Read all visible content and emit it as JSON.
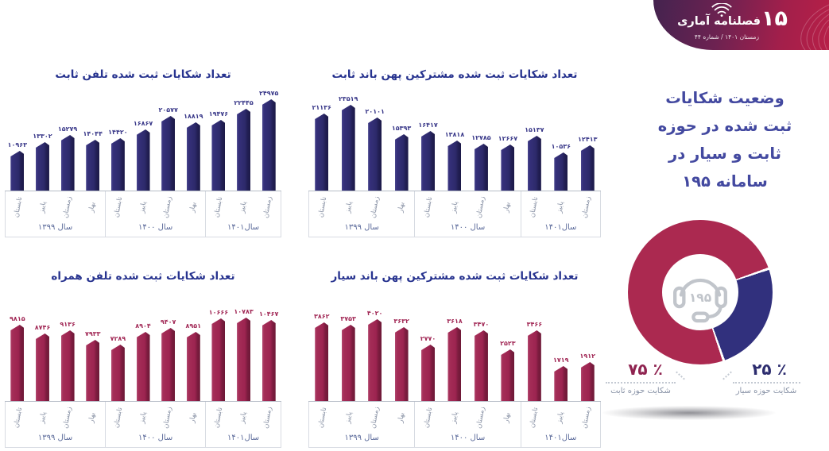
{
  "header_badge": {
    "issue_big_number": "۱۵",
    "title": "فصلنامه آماری",
    "subtitle": "زمستان ۱۴۰۱ / شماره ۴۴",
    "gradient_left": "#44234f",
    "gradient_right": "#b71f47"
  },
  "side_panel": {
    "title_lines": [
      "وضعیت شکایات",
      "ثبت شده در حوزه",
      "ثابت و سیار در",
      "سامانه ۱۹۵"
    ]
  },
  "chart_data": [
    {
      "id": "fixed-phone-complaints",
      "type": "bar",
      "title": "تعداد شکایات ثبت شده تلفن ثابت",
      "theme": "navy",
      "bar_color": "#2d2a6b",
      "label_color": "#3b3a8a",
      "ylim": [
        0,
        25500
      ],
      "grid": false,
      "groups": [
        {
          "year": "سال ۱۳۹۹",
          "seasons": [
            "تابستان",
            "پاییز",
            "زمستان",
            "بهار"
          ],
          "values": [
            10963,
            13302,
            15279,
            14044
          ],
          "value_labels": [
            "۱۰۹۶۳",
            "۱۳۳۰۲",
            "۱۵۲۷۹",
            "۱۴۰۴۴"
          ]
        },
        {
          "year": "سال ۱۴۰۰",
          "seasons": [
            "تابستان",
            "پاییز",
            "زمستان",
            "بهار"
          ],
          "values": [
            14420,
            16867,
            20577,
            18819
          ],
          "value_labels": [
            "۱۴۴۲۰",
            "۱۶۸۶۷",
            "۲۰۵۷۷",
            "۱۸۸۱۹"
          ]
        },
        {
          "year": "سال۱۴۰۱",
          "seasons": [
            "تابستان",
            "پاییز",
            "زمستان"
          ],
          "values": [
            19476,
            22445,
            24975
          ],
          "value_labels": [
            "۱۹۴۷۶",
            "۲۲۴۴۵",
            "۲۴۹۷۵"
          ]
        }
      ]
    },
    {
      "id": "fixed-broadband-complaints",
      "type": "bar",
      "title": "تعداد شکایات ثبت شده مشترکین پهن باند ثابت",
      "theme": "navy",
      "bar_color": "#2d2a6b",
      "label_color": "#3b3a8a",
      "ylim": [
        0,
        25500
      ],
      "grid": false,
      "groups": [
        {
          "year": "سال ۱۳۹۹",
          "seasons": [
            "تابستان",
            "پاییز",
            "زمستان",
            "بهار"
          ],
          "values": [
            21136,
            23519,
            20101,
            15393
          ],
          "value_labels": [
            "۲۱۱۳۶",
            "۲۳۵۱۹",
            "۲۰۱۰۱",
            "۱۵۳۹۳"
          ]
        },
        {
          "year": "سال ۱۴۰۰",
          "seasons": [
            "تابستان",
            "پاییز",
            "زمستان",
            "بهار"
          ],
          "values": [
            16417,
            13818,
            12785,
            12667
          ],
          "value_labels": [
            "۱۶۴۱۷",
            "۱۳۸۱۸",
            "۱۲۷۸۵",
            "۱۲۶۶۷"
          ]
        },
        {
          "year": "سال۱۴۰۱",
          "seasons": [
            "تابستان",
            "پاییز",
            "زمستان"
          ],
          "values": [
            15137,
            10536,
            12413
          ],
          "value_labels": [
            "۱۵۱۳۷",
            "۱۰۵۳۶",
            "۱۲۴۱۳"
          ]
        }
      ]
    },
    {
      "id": "mobile-phone-complaints",
      "type": "bar",
      "title": "تعداد شکایات ثبت شده تلفن همراه",
      "theme": "crimson",
      "bar_color": "#9c2450",
      "label_color": "#a22a57",
      "ylim": [
        0,
        11300
      ],
      "grid": false,
      "groups": [
        {
          "year": "سال ۱۳۹۹",
          "seasons": [
            "تابستان",
            "پاییز",
            "زمستان",
            "بهار"
          ],
          "values": [
            9815,
            8746,
            9136,
            7933
          ],
          "value_labels": [
            "۹۸۱۵",
            "۸۷۴۶",
            "۹۱۳۶",
            "۷۹۳۳"
          ]
        },
        {
          "year": "سال ۱۴۰۰",
          "seasons": [
            "تابستان",
            "پاییز",
            "زمستان",
            "بهار"
          ],
          "values": [
            7289,
            8904,
            9407,
            8951
          ],
          "value_labels": [
            "۷۲۸۹",
            "۸۹۰۴",
            "۹۴۰۷",
            "۸۹۵۱"
          ]
        },
        {
          "year": "سال۱۴۰۱",
          "seasons": [
            "تابستان",
            "پاییز",
            "زمستان"
          ],
          "values": [
            10666,
            10783,
            10467
          ],
          "value_labels": [
            "۱۰۶۶۶",
            "۱۰۷۸۳",
            "۱۰۴۶۷"
          ]
        }
      ]
    },
    {
      "id": "mobile-broadband-complaints",
      "type": "bar",
      "title": "تعداد شکایات ثبت شده مشترکین پهن باند سیار",
      "theme": "crimson",
      "bar_color": "#9c2450",
      "label_color": "#a22a57",
      "ylim": [
        0,
        4300
      ],
      "grid": false,
      "groups": [
        {
          "year": "سال ۱۳۹۹",
          "seasons": [
            "تابستان",
            "پاییز",
            "زمستان",
            "بهار"
          ],
          "values": [
            3862,
            3753,
            4020,
            3632
          ],
          "value_labels": [
            "۳۸۶۲",
            "۳۷۵۳",
            "۴۰۲۰",
            "۳۶۳۲"
          ]
        },
        {
          "year": "سال ۱۴۰۰",
          "seasons": [
            "تابستان",
            "پاییز",
            "زمستان",
            "بهار"
          ],
          "values": [
            2770,
            3618,
            3470,
            2523
          ],
          "value_labels": [
            "۲۷۷۰",
            "۳۶۱۸",
            "۳۴۷۰",
            "۲۵۲۳"
          ]
        },
        {
          "year": "سال۱۴۰۱",
          "seasons": [
            "تابستان",
            "پاییز",
            "زمستان"
          ],
          "values": [
            3466,
            1719,
            1912
          ],
          "value_labels": [
            "۳۴۶۶",
            "۱۷۱۹",
            "۱۹۱۲"
          ]
        }
      ]
    },
    {
      "id": "complaints-share-donut",
      "type": "pie",
      "center_label": "۱۹۵",
      "legend_position": "bottom",
      "slices": [
        {
          "label": "شکایت حوزه ثابت",
          "pct_label": "۷۵ ٪",
          "value": 75,
          "color": "#ab2950",
          "text_color": "#8f2350"
        },
        {
          "label": "شکایت حوزه سیار",
          "pct_label": "۲۵ ٪",
          "value": 25,
          "color": "#31307d",
          "text_color": "#2c2c6e"
        }
      ]
    }
  ]
}
